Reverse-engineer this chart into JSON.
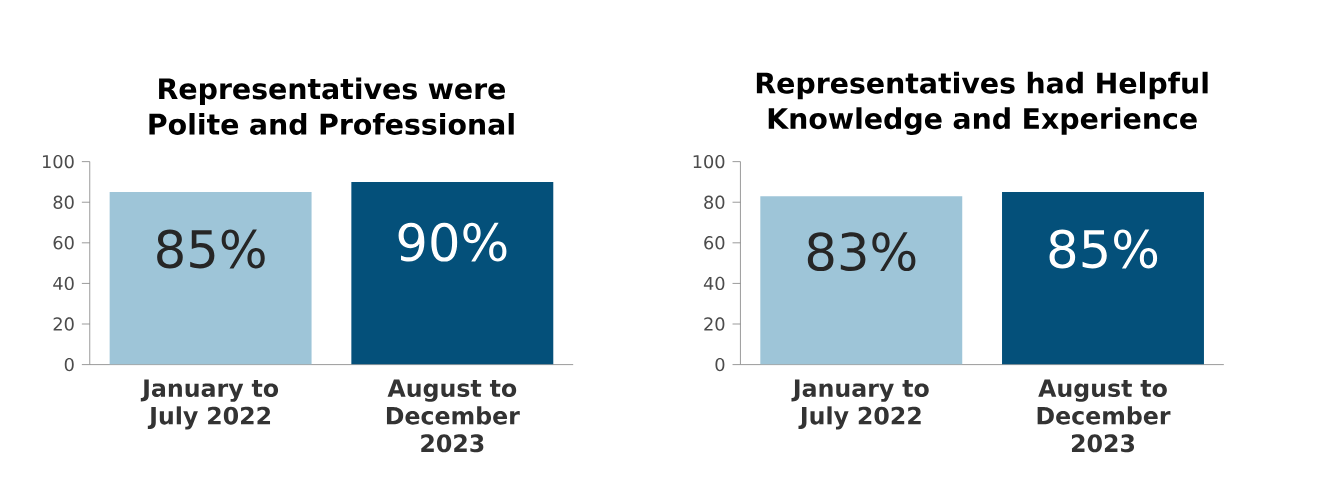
{
  "chart_data": [
    {
      "type": "bar",
      "title": "Representatives were Polite and Professional",
      "categories": [
        "January to July 2022",
        "August to December 2023"
      ],
      "values": [
        85,
        90
      ],
      "colors": [
        "#9ec5d8",
        "#04507a"
      ],
      "value_labels": [
        "85%",
        "90%"
      ],
      "ylim": [
        0,
        100
      ],
      "yticks": [
        0,
        20,
        40,
        60,
        80,
        100
      ],
      "grid": false
    },
    {
      "type": "bar",
      "title": "Representatives had Helpful Knowledge and Experience",
      "categories": [
        "January to July 2022",
        "August to December 2023"
      ],
      "values": [
        83,
        85
      ],
      "colors": [
        "#9ec5d8",
        "#04507a"
      ],
      "value_labels": [
        "83%",
        "85%"
      ],
      "ylim": [
        0,
        100
      ],
      "yticks": [
        0,
        20,
        40,
        60,
        80,
        100
      ],
      "grid": false
    }
  ]
}
